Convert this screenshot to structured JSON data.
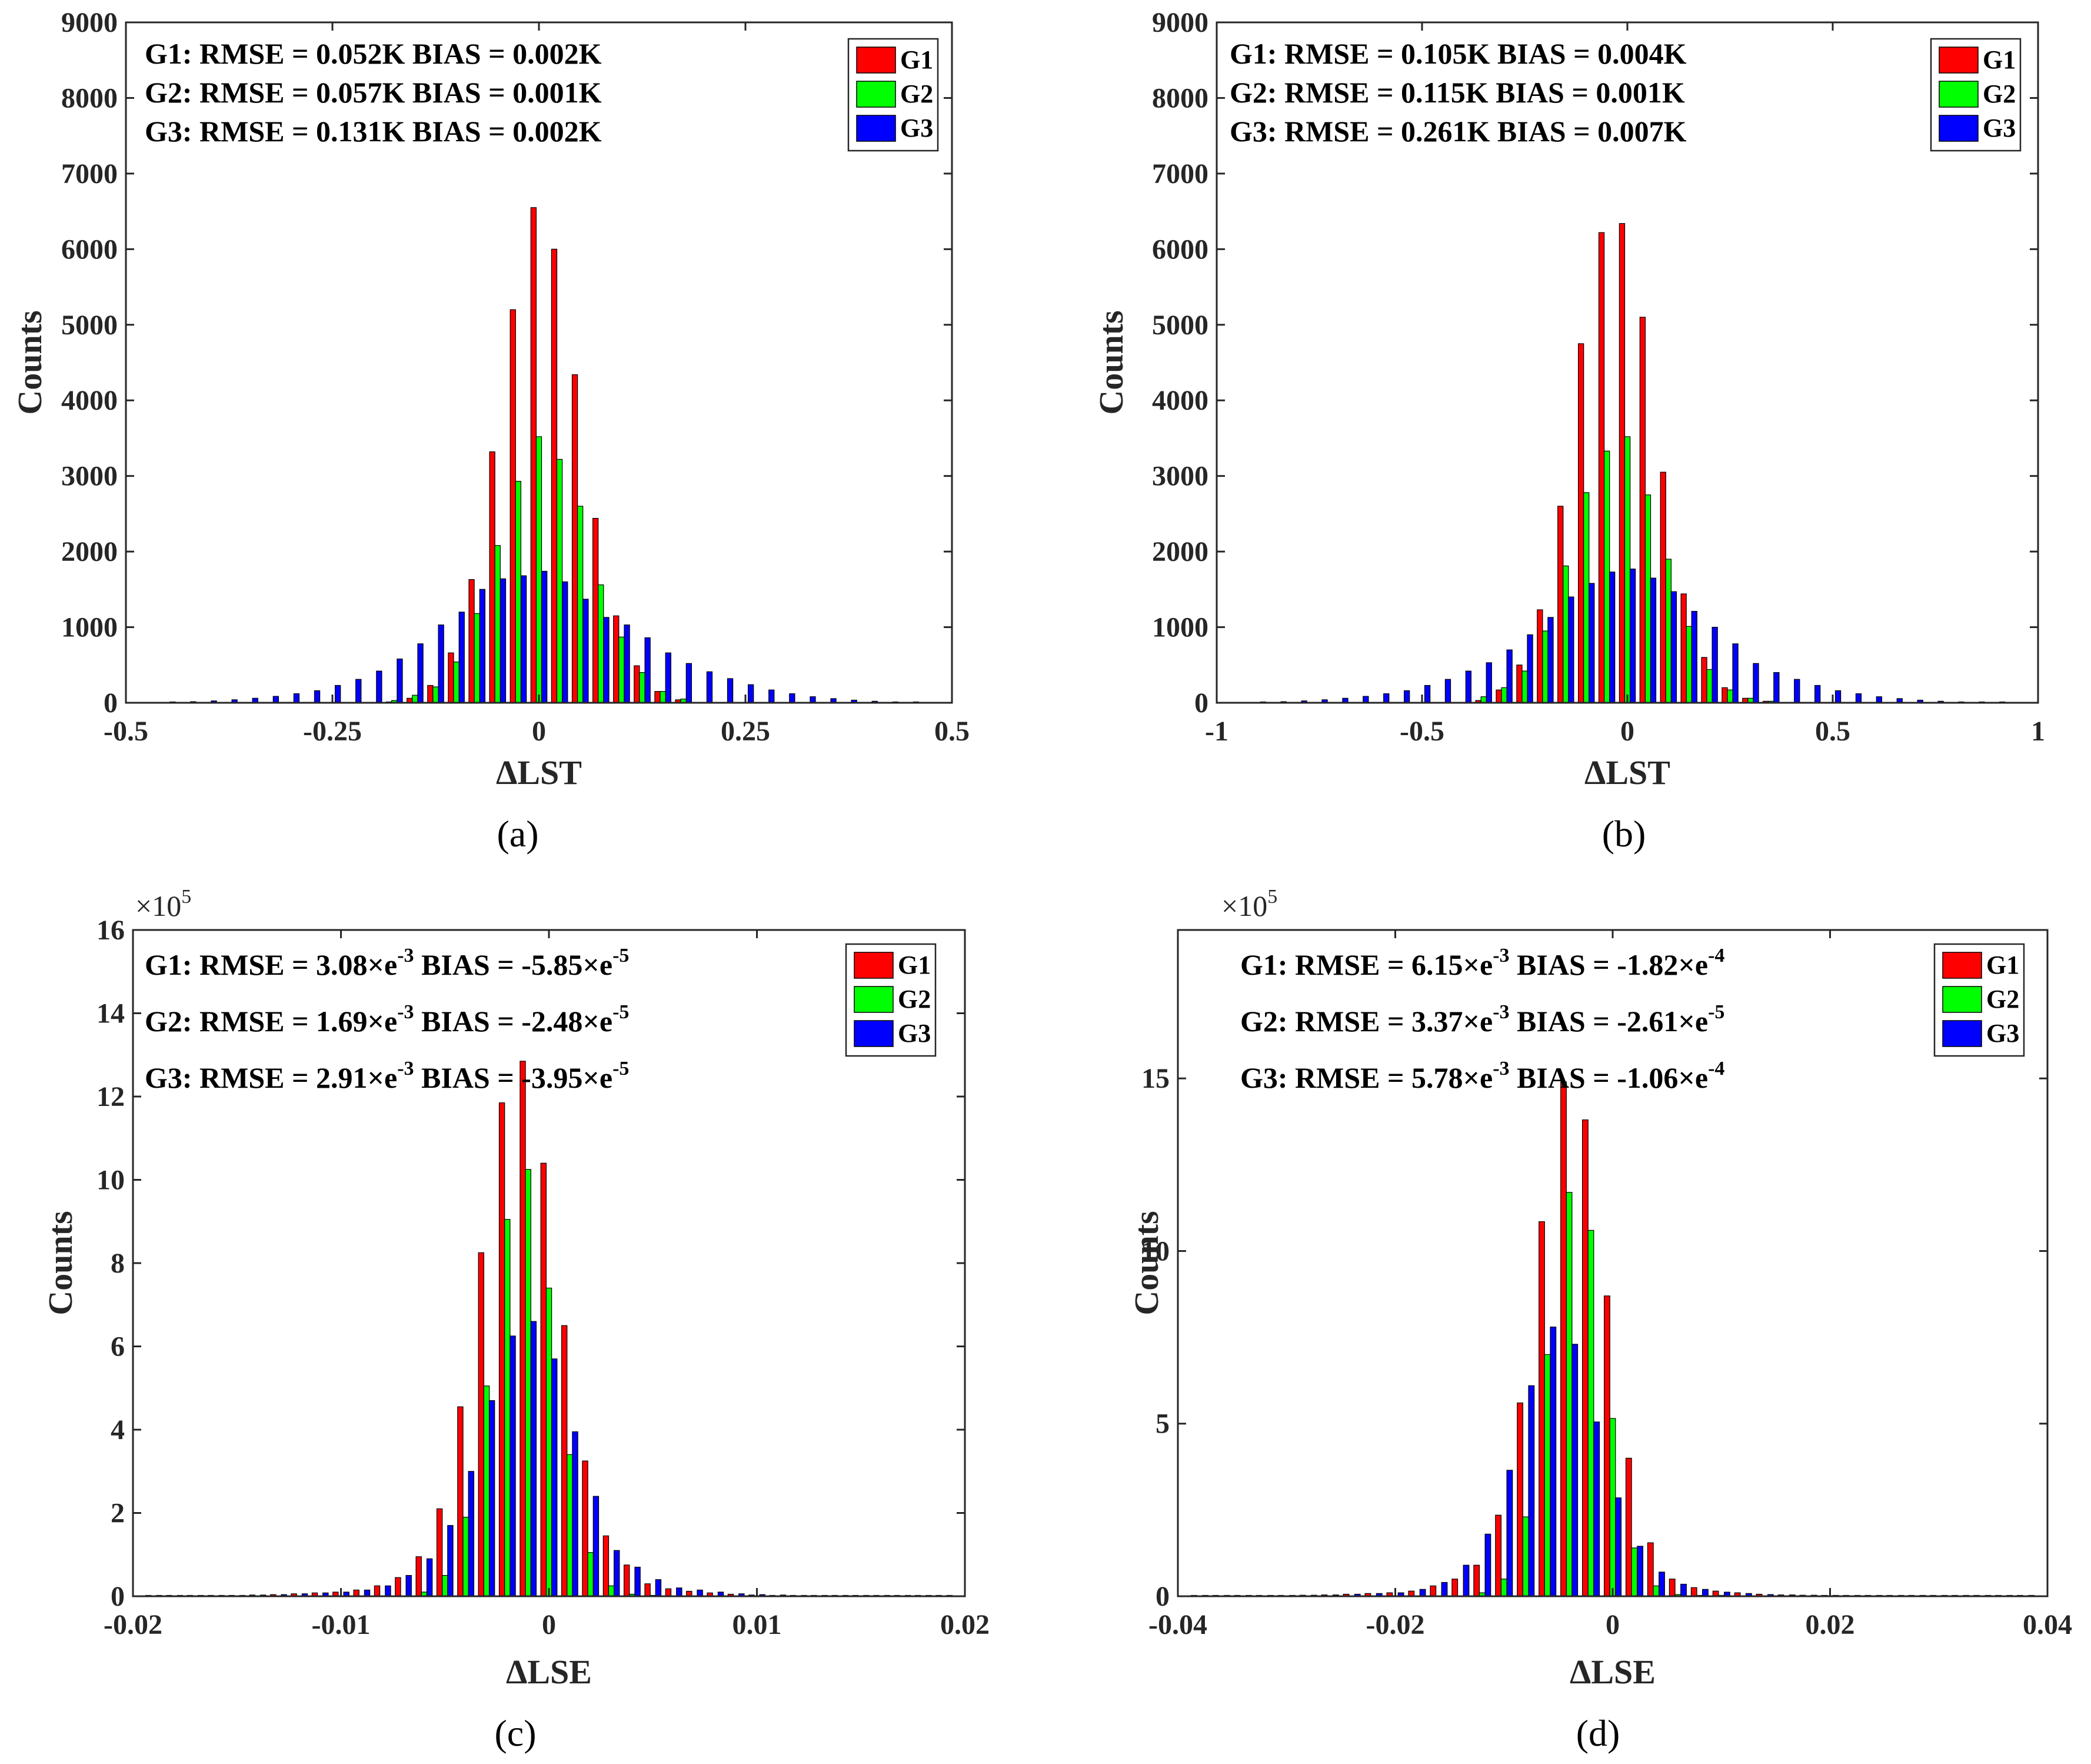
{
  "colors": {
    "G1": "#ff0000",
    "G2": "#00ff00",
    "G3": "#0000ff",
    "axis": "#262626"
  },
  "chart_data": [
    {
      "id": "a",
      "type": "bar",
      "panel_label": "(a)",
      "xlabel": "ΔLST",
      "ylabel": "Counts",
      "xlim": [
        -0.5,
        0.5
      ],
      "ylim": [
        0,
        9000
      ],
      "xticks": [
        -0.5,
        -0.25,
        0,
        0.25,
        0.5
      ],
      "xtick_labels": [
        "-0.5",
        "-0.25",
        "0",
        "0.25",
        "0.5"
      ],
      "yticks": [
        0,
        1000,
        2000,
        3000,
        4000,
        5000,
        6000,
        7000,
        8000,
        9000
      ],
      "ytick_labels": [
        "0",
        "1000",
        "2000",
        "3000",
        "4000",
        "5000",
        "6000",
        "7000",
        "8000",
        "9000"
      ],
      "y_exponent_label": "",
      "legend": [
        "G1",
        "G2",
        "G3"
      ],
      "legend_position": "top-right",
      "stats": [
        {
          "label": "G1: RMSE = 0.052K BIAS = 0.002K"
        },
        {
          "label": "G2: RMSE = 0.057K BIAS = 0.001K"
        },
        {
          "label": "G3: RMSE = 0.131K BIAS = 0.002K"
        }
      ],
      "bin_width": 0.025,
      "series": [
        {
          "name": "G1",
          "centers": [
            -0.175,
            -0.15,
            -0.125,
            -0.1,
            -0.075,
            -0.05,
            -0.025,
            0,
            0.025,
            0.05,
            0.075,
            0.1,
            0.125,
            0.15,
            0.175
          ],
          "values": [
            10,
            60,
            230,
            660,
            1630,
            3320,
            5200,
            6550,
            6000,
            4340,
            2440,
            1150,
            490,
            150,
            40
          ]
        },
        {
          "name": "G2",
          "centers": [
            -0.175,
            -0.15,
            -0.125,
            -0.1,
            -0.075,
            -0.05,
            -0.025,
            0,
            0.025,
            0.05,
            0.075,
            0.1,
            0.125,
            0.15,
            0.175
          ],
          "values": [
            30,
            100,
            210,
            540,
            1180,
            2080,
            2930,
            3520,
            3220,
            2600,
            1560,
            870,
            400,
            150,
            50
          ]
        },
        {
          "name": "G3",
          "centers": [
            -0.45,
            -0.425,
            -0.4,
            -0.375,
            -0.35,
            -0.325,
            -0.3,
            -0.275,
            -0.25,
            -0.225,
            -0.2,
            -0.175,
            -0.15,
            -0.125,
            -0.1,
            -0.075,
            -0.05,
            -0.025,
            0,
            0.025,
            0.05,
            0.075,
            0.1,
            0.125,
            0.15,
            0.175,
            0.2,
            0.225,
            0.25,
            0.275,
            0.3,
            0.325,
            0.35,
            0.375,
            0.4,
            0.425,
            0.45
          ],
          "values": [
            10,
            15,
            25,
            40,
            60,
            85,
            120,
            160,
            230,
            310,
            420,
            580,
            780,
            1030,
            1200,
            1500,
            1640,
            1680,
            1740,
            1600,
            1370,
            1130,
            1030,
            860,
            660,
            520,
            410,
            320,
            240,
            170,
            120,
            80,
            55,
            35,
            20,
            12,
            8
          ]
        }
      ]
    },
    {
      "id": "b",
      "type": "bar",
      "panel_label": "(b)",
      "xlabel": "ΔLST",
      "ylabel": "Counts",
      "xlim": [
        -1,
        1
      ],
      "ylim": [
        0,
        9000
      ],
      "xticks": [
        -1,
        -0.5,
        0,
        0.5,
        1
      ],
      "xtick_labels": [
        "-1",
        "-0.5",
        "0",
        "0.5",
        "1"
      ],
      "yticks": [
        0,
        1000,
        2000,
        3000,
        4000,
        5000,
        6000,
        7000,
        8000,
        9000
      ],
      "ytick_labels": [
        "0",
        "1000",
        "2000",
        "3000",
        "4000",
        "5000",
        "6000",
        "7000",
        "8000",
        "9000"
      ],
      "y_exponent_label": "",
      "legend": [
        "G1",
        "G2",
        "G3"
      ],
      "legend_position": "top-right",
      "stats": [
        {
          "label": "G1: RMSE = 0.105K BIAS = 0.004K"
        },
        {
          "label": "G2: RMSE = 0.115K BIAS = 0.001K"
        },
        {
          "label": "G3: RMSE = 0.261K BIAS = 0.007K"
        }
      ],
      "bin_width": 0.05,
      "series": [
        {
          "name": "G1",
          "centers": [
            -0.35,
            -0.3,
            -0.25,
            -0.2,
            -0.15,
            -0.1,
            -0.05,
            0,
            0.05,
            0.1,
            0.15,
            0.2,
            0.25,
            0.3,
            0.35
          ],
          "values": [
            30,
            170,
            500,
            1230,
            2600,
            4750,
            6220,
            6340,
            5100,
            3050,
            1440,
            600,
            200,
            60,
            20
          ]
        },
        {
          "name": "G2",
          "centers": [
            -0.35,
            -0.3,
            -0.25,
            -0.2,
            -0.15,
            -0.1,
            -0.05,
            0,
            0.05,
            0.1,
            0.15,
            0.2,
            0.25,
            0.3,
            0.35
          ],
          "values": [
            80,
            200,
            420,
            950,
            1810,
            2780,
            3330,
            3520,
            2750,
            1900,
            1010,
            440,
            170,
            60,
            20
          ]
        },
        {
          "name": "G3",
          "centers": [
            -0.9,
            -0.85,
            -0.8,
            -0.75,
            -0.7,
            -0.65,
            -0.6,
            -0.55,
            -0.5,
            -0.45,
            -0.4,
            -0.35,
            -0.3,
            -0.25,
            -0.2,
            -0.15,
            -0.1,
            -0.05,
            0,
            0.05,
            0.1,
            0.15,
            0.2,
            0.25,
            0.3,
            0.35,
            0.4,
            0.45,
            0.5,
            0.55,
            0.6,
            0.65,
            0.7,
            0.75,
            0.8,
            0.85,
            0.9
          ],
          "values": [
            10,
            15,
            25,
            40,
            60,
            85,
            120,
            160,
            230,
            310,
            420,
            530,
            700,
            900,
            1130,
            1400,
            1580,
            1730,
            1770,
            1650,
            1470,
            1210,
            1000,
            780,
            520,
            400,
            310,
            230,
            160,
            120,
            80,
            55,
            35,
            20,
            12,
            8,
            5
          ]
        }
      ]
    },
    {
      "id": "c",
      "type": "bar",
      "panel_label": "(c)",
      "xlabel": "ΔLSE",
      "ylabel": "Counts",
      "xlim": [
        -0.02,
        0.02
      ],
      "ylim": [
        0,
        16
      ],
      "xticks": [
        -0.02,
        -0.01,
        0,
        0.01,
        0.02
      ],
      "xtick_labels": [
        "-0.02",
        "-0.01",
        "0",
        "0.01",
        "0.02"
      ],
      "yticks": [
        0,
        2,
        4,
        6,
        8,
        10,
        12,
        14,
        16
      ],
      "ytick_labels": [
        "0",
        "2",
        "4",
        "6",
        "8",
        "10",
        "12",
        "14",
        "16"
      ],
      "y_exponent_label": "×10",
      "y_exponent_power": "5",
      "legend": [
        "G1",
        "G2",
        "G3"
      ],
      "legend_position": "top-right",
      "stats": [
        {
          "main": "G1: RMSE = 3.08×e",
          "sup1": "-3",
          "mid": " BIAS = -5.85×e",
          "sup2": "-5"
        },
        {
          "main": "G2: RMSE = 1.69×e",
          "sup1": "-3",
          "mid": " BIAS = -2.48×e",
          "sup2": "-5"
        },
        {
          "main": "G3: RMSE = 2.91×e",
          "sup1": "-3",
          "mid": " BIAS = -3.95×e",
          "sup2": "-5"
        }
      ],
      "bin_width": 0.001,
      "series": [
        {
          "name": "G1",
          "centers": [
            -0.019,
            -0.018,
            -0.017,
            -0.016,
            -0.015,
            -0.014,
            -0.013,
            -0.012,
            -0.011,
            -0.01,
            -0.009,
            -0.008,
            -0.007,
            -0.006,
            -0.005,
            -0.004,
            -0.003,
            -0.002,
            -0.001,
            0,
            0.001,
            0.002,
            0.003,
            0.004,
            0.005,
            0.006,
            0.007,
            0.008,
            0.009,
            0.01,
            0.011,
            0.012,
            0.013,
            0.014,
            0.015,
            0.016,
            0.017,
            0.018,
            0.019
          ],
          "values": [
            0.01,
            0.01,
            0.01,
            0.02,
            0.02,
            0.03,
            0.04,
            0.06,
            0.08,
            0.1,
            0.15,
            0.25,
            0.45,
            0.95,
            2.1,
            4.55,
            8.25,
            11.85,
            12.85,
            10.4,
            6.5,
            3.25,
            1.45,
            0.75,
            0.3,
            0.18,
            0.12,
            0.08,
            0.05,
            0.03,
            0.02,
            0.02,
            0.01,
            0.01,
            0.01,
            0.01,
            0.01,
            0.01,
            0.01
          ]
        },
        {
          "name": "G2",
          "centers": [
            -0.006,
            -0.005,
            -0.004,
            -0.003,
            -0.002,
            -0.001,
            0,
            0.001,
            0.002,
            0.003,
            0.004,
            0.005
          ],
          "values": [
            0.1,
            0.5,
            1.9,
            5.05,
            9.05,
            10.25,
            7.4,
            3.4,
            1.05,
            0.25,
            0.05,
            0.02
          ]
        },
        {
          "name": "G3",
          "centers": [
            -0.019,
            -0.018,
            -0.017,
            -0.016,
            -0.015,
            -0.014,
            -0.013,
            -0.012,
            -0.011,
            -0.01,
            -0.009,
            -0.008,
            -0.007,
            -0.006,
            -0.005,
            -0.004,
            -0.003,
            -0.002,
            -0.001,
            0,
            0.001,
            0.002,
            0.003,
            0.004,
            0.005,
            0.006,
            0.007,
            0.008,
            0.009,
            0.01,
            0.011,
            0.012,
            0.013,
            0.014,
            0.015,
            0.016,
            0.017,
            0.018,
            0.019
          ],
          "values": [
            0.01,
            0.01,
            0.01,
            0.02,
            0.02,
            0.03,
            0.04,
            0.06,
            0.08,
            0.1,
            0.15,
            0.25,
            0.5,
            0.9,
            1.7,
            3.0,
            4.7,
            6.25,
            6.6,
            5.7,
            3.95,
            2.4,
            1.1,
            0.7,
            0.4,
            0.2,
            0.15,
            0.1,
            0.06,
            0.04,
            0.03,
            0.02,
            0.02,
            0.01,
            0.01,
            0.01,
            0.01,
            0.01,
            0.01
          ]
        }
      ]
    },
    {
      "id": "d",
      "type": "bar",
      "panel_label": "(d)",
      "xlabel": "ΔLSE",
      "ylabel": "Counts",
      "xlim": [
        -0.04,
        0.04
      ],
      "ylim": [
        0,
        19.3
      ],
      "xticks": [
        -0.04,
        -0.02,
        0,
        0.02,
        0.04
      ],
      "xtick_labels": [
        "-0.04",
        "-0.02",
        "0",
        "0.02",
        "0.04"
      ],
      "yticks": [
        0,
        5,
        10,
        15
      ],
      "ytick_labels": [
        "0",
        "5",
        "10",
        "15"
      ],
      "y_exponent_label": "×10",
      "y_exponent_power": "5",
      "legend": [
        "G1",
        "G2",
        "G3"
      ],
      "legend_position": "top-right",
      "stats": [
        {
          "main": "G1: RMSE = 6.15×e",
          "sup1": "-3",
          "mid": " BIAS = -1.82×e",
          "sup2": "-4"
        },
        {
          "main": "G2: RMSE = 3.37×e",
          "sup1": "-3",
          "mid": " BIAS = -2.61×e",
          "sup2": "-5"
        },
        {
          "main": "G3: RMSE = 5.78×e",
          "sup1": "-3",
          "mid": " BIAS = -1.06×e",
          "sup2": "-4"
        }
      ],
      "bin_width": 0.002,
      "series": [
        {
          "name": "G1",
          "centers": [
            -0.038,
            -0.036,
            -0.034,
            -0.032,
            -0.03,
            -0.028,
            -0.026,
            -0.024,
            -0.022,
            -0.02,
            -0.018,
            -0.016,
            -0.014,
            -0.012,
            -0.01,
            -0.008,
            -0.006,
            -0.004,
            -0.002,
            0,
            0.002,
            0.004,
            0.006,
            0.008,
            0.01,
            0.012,
            0.014,
            0.016,
            0.018,
            0.02,
            0.022,
            0.024,
            0.026,
            0.028,
            0.03,
            0.032,
            0.034,
            0.036,
            0.038
          ],
          "values": [
            0.01,
            0.01,
            0.01,
            0.02,
            0.02,
            0.03,
            0.04,
            0.06,
            0.08,
            0.1,
            0.15,
            0.3,
            0.5,
            0.9,
            2.35,
            5.6,
            10.85,
            14.9,
            13.8,
            8.7,
            4.0,
            1.55,
            0.5,
            0.25,
            0.15,
            0.1,
            0.06,
            0.04,
            0.03,
            0.02,
            0.02,
            0.01,
            0.01,
            0.01,
            0.01,
            0.01,
            0.01,
            0.01,
            0.01
          ]
        },
        {
          "name": "G2",
          "centers": [
            -0.012,
            -0.01,
            -0.008,
            -0.006,
            -0.004,
            -0.002,
            0,
            0.002,
            0.004,
            0.006,
            0.008,
            0.01
          ],
          "values": [
            0.1,
            0.5,
            2.3,
            7.0,
            11.7,
            10.6,
            5.15,
            1.4,
            0.3,
            0.05,
            0.02,
            0.01
          ]
        },
        {
          "name": "G3",
          "centers": [
            -0.038,
            -0.036,
            -0.034,
            -0.032,
            -0.03,
            -0.028,
            -0.026,
            -0.024,
            -0.022,
            -0.02,
            -0.018,
            -0.016,
            -0.014,
            -0.012,
            -0.01,
            -0.008,
            -0.006,
            -0.004,
            -0.002,
            0,
            0.002,
            0.004,
            0.006,
            0.008,
            0.01,
            0.012,
            0.014,
            0.016,
            0.018,
            0.02,
            0.022,
            0.024,
            0.026,
            0.028,
            0.03,
            0.032,
            0.034,
            0.036,
            0.038
          ],
          "values": [
            0.01,
            0.01,
            0.01,
            0.02,
            0.02,
            0.03,
            0.04,
            0.06,
            0.08,
            0.1,
            0.2,
            0.4,
            0.9,
            1.8,
            3.65,
            6.1,
            7.8,
            7.3,
            5.05,
            2.85,
            1.45,
            0.7,
            0.35,
            0.2,
            0.12,
            0.08,
            0.05,
            0.04,
            0.03,
            0.02,
            0.02,
            0.01,
            0.01,
            0.01,
            0.01,
            0.01,
            0.01,
            0.01,
            0.01
          ]
        }
      ]
    }
  ]
}
